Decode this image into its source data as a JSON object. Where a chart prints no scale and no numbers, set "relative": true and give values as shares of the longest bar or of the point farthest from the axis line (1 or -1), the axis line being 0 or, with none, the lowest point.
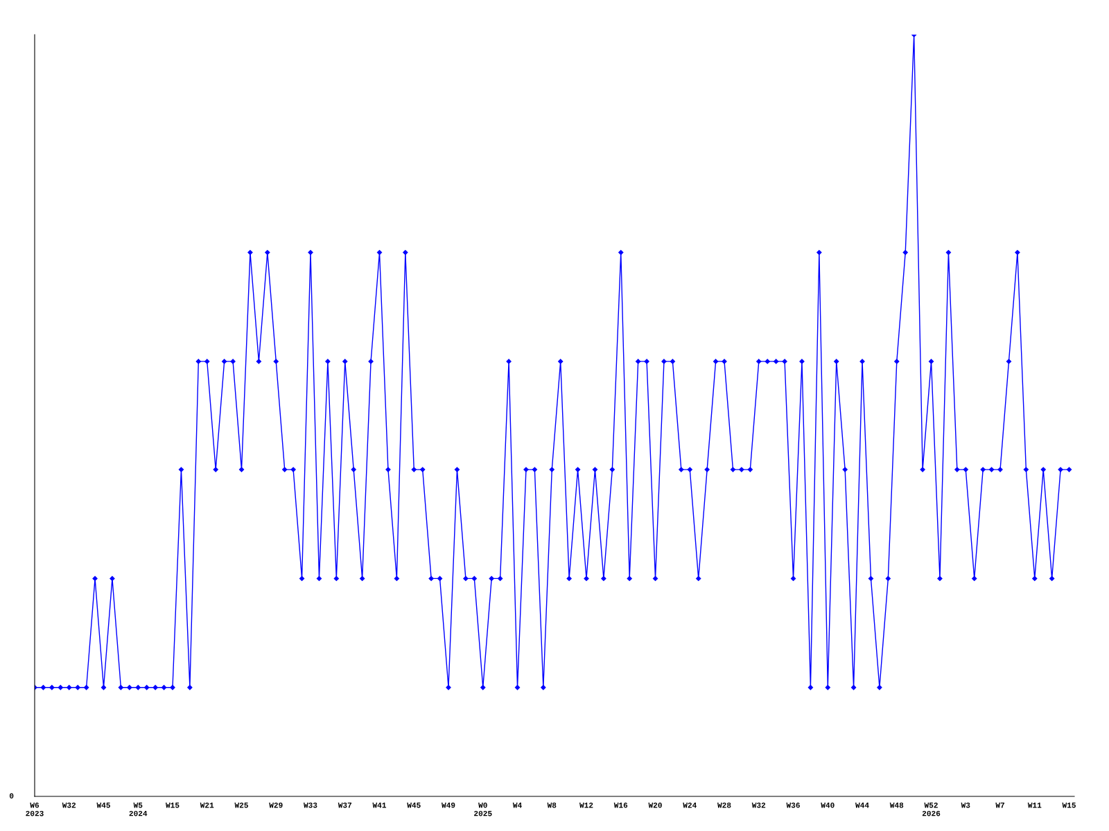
{
  "chart_data": {
    "type": "line",
    "relative": true,
    "color": "#0000ff",
    "marker": "diamond",
    "line_style": "solid",
    "grid": false,
    "annotations": [
      "0"
    ],
    "categories": [
      "W6\n2023",
      null,
      null,
      null,
      "W32",
      null,
      null,
      null,
      "W45",
      null,
      null,
      null,
      "W5\n2024",
      null,
      null,
      null,
      "W15",
      null,
      null,
      null,
      "W21",
      null,
      null,
      null,
      "W25",
      null,
      null,
      null,
      "W29",
      null,
      null,
      null,
      "W33",
      null,
      null,
      null,
      "W37",
      null,
      null,
      null,
      "W41",
      null,
      null,
      null,
      "W45",
      null,
      null,
      null,
      "W49",
      null,
      null,
      null,
      "W0\n2025",
      null,
      null,
      null,
      "W4",
      null,
      null,
      null,
      "W8",
      null,
      null,
      null,
      "W12",
      null,
      null,
      null,
      "W16",
      null,
      null,
      null,
      "W20",
      null,
      null,
      null,
      "W24",
      null,
      null,
      null,
      "W28",
      null,
      null,
      null,
      "W32",
      null,
      null,
      null,
      "W36",
      null,
      null,
      null,
      "W40",
      null,
      null,
      null,
      "W44",
      null,
      null,
      null,
      "W48",
      null,
      null,
      null,
      "W52\n2026",
      null,
      null,
      null,
      "W3",
      null,
      null,
      null,
      "W7",
      null,
      null,
      null,
      "W11",
      null,
      null,
      null,
      "W15"
    ],
    "values": [
      0.143,
      0.143,
      0.143,
      0.143,
      0.143,
      0.143,
      0.143,
      0.286,
      0.143,
      0.286,
      0.143,
      0.143,
      0.143,
      0.143,
      0.143,
      0.143,
      0.143,
      0.429,
      0.143,
      0.571,
      0.571,
      0.429,
      0.571,
      0.571,
      0.429,
      0.714,
      0.571,
      0.714,
      0.571,
      0.429,
      0.429,
      0.286,
      0.714,
      0.286,
      0.571,
      0.286,
      0.571,
      0.429,
      0.286,
      0.571,
      0.714,
      0.429,
      0.286,
      0.714,
      0.429,
      0.429,
      0.286,
      0.286,
      0.143,
      0.429,
      0.286,
      0.286,
      0.143,
      0.286,
      0.286,
      0.571,
      0.143,
      0.429,
      0.429,
      0.143,
      0.429,
      0.571,
      0.286,
      0.429,
      0.286,
      0.429,
      0.286,
      0.429,
      0.714,
      0.286,
      0.571,
      0.571,
      0.286,
      0.571,
      0.571,
      0.429,
      0.429,
      0.286,
      0.429,
      0.571,
      0.571,
      0.429,
      0.429,
      0.429,
      0.571,
      0.571,
      0.571,
      0.571,
      0.286,
      0.571,
      0.143,
      0.714,
      0.143,
      0.571,
      0.429,
      0.143,
      0.571,
      0.286,
      0.143,
      0.286,
      0.571,
      0.714,
      1,
      0.429,
      0.571,
      0.286,
      0.714,
      0.429,
      0.429,
      0.286,
      0.429,
      0.429,
      0.429,
      0.571,
      0.714,
      0.429,
      0.286,
      0.429,
      0.286,
      0.429,
      0.429
    ]
  }
}
